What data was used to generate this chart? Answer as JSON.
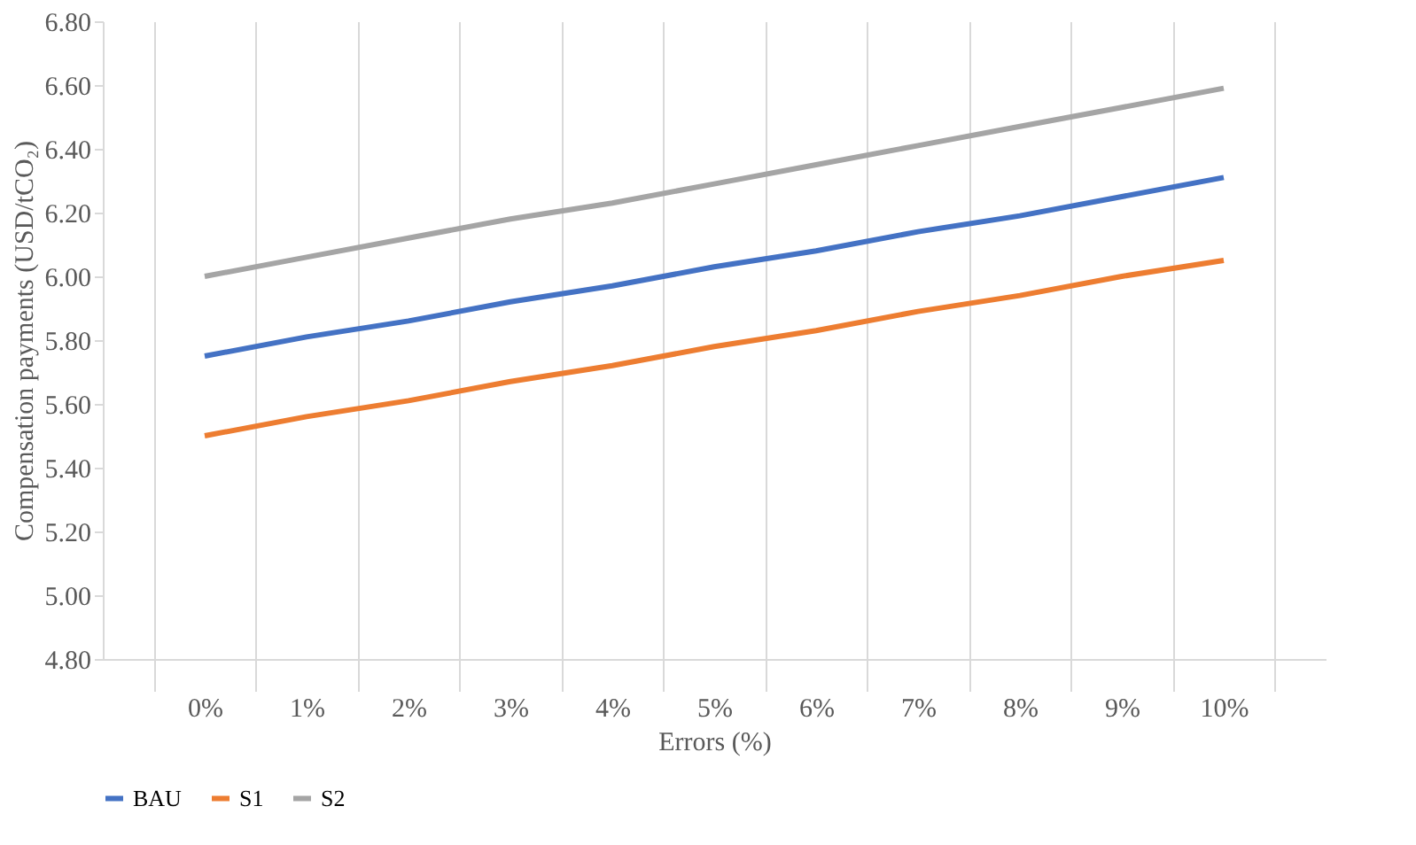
{
  "chart_data": {
    "type": "line",
    "xlabel": "Errors (%)",
    "ylabel": "Compensation  payments (USD/tCO₂)",
    "categories": [
      "0%",
      "1%",
      "2%",
      "3%",
      "4%",
      "5%",
      "6%",
      "7%",
      "8%",
      "9%",
      "10%"
    ],
    "series": [
      {
        "name": "BAU",
        "color": "#4472c4",
        "values": [
          5.75,
          5.81,
          5.86,
          5.92,
          5.97,
          6.03,
          6.08,
          6.14,
          6.19,
          6.25,
          6.31
        ]
      },
      {
        "name": "S1",
        "color": "#ed7d31",
        "values": [
          5.5,
          5.56,
          5.61,
          5.67,
          5.72,
          5.78,
          5.83,
          5.89,
          5.94,
          6.0,
          6.05
        ]
      },
      {
        "name": "S2",
        "color": "#a5a5a5",
        "values": [
          6.0,
          6.06,
          6.12,
          6.18,
          6.23,
          6.29,
          6.35,
          6.41,
          6.47,
          6.53,
          6.59
        ]
      }
    ],
    "ylim": [
      4.8,
      6.8
    ],
    "yticks": [
      {
        "value": 4.8,
        "label": "4.80"
      },
      {
        "value": 5.0,
        "label": "5.00"
      },
      {
        "value": 5.2,
        "label": "5.20"
      },
      {
        "value": 5.4,
        "label": "5.40"
      },
      {
        "value": 5.6,
        "label": "5.60"
      },
      {
        "value": 5.8,
        "label": "5.80"
      },
      {
        "value": 6.0,
        "label": "6.00"
      },
      {
        "value": 6.2,
        "label": "6.20"
      },
      {
        "value": 6.4,
        "label": "6.40"
      },
      {
        "value": 6.6,
        "label": "6.60"
      },
      {
        "value": 6.8,
        "label": "6.80"
      }
    ],
    "grid": "x",
    "legend": "bottom",
    "marker": "none",
    "line_style": "solid"
  }
}
